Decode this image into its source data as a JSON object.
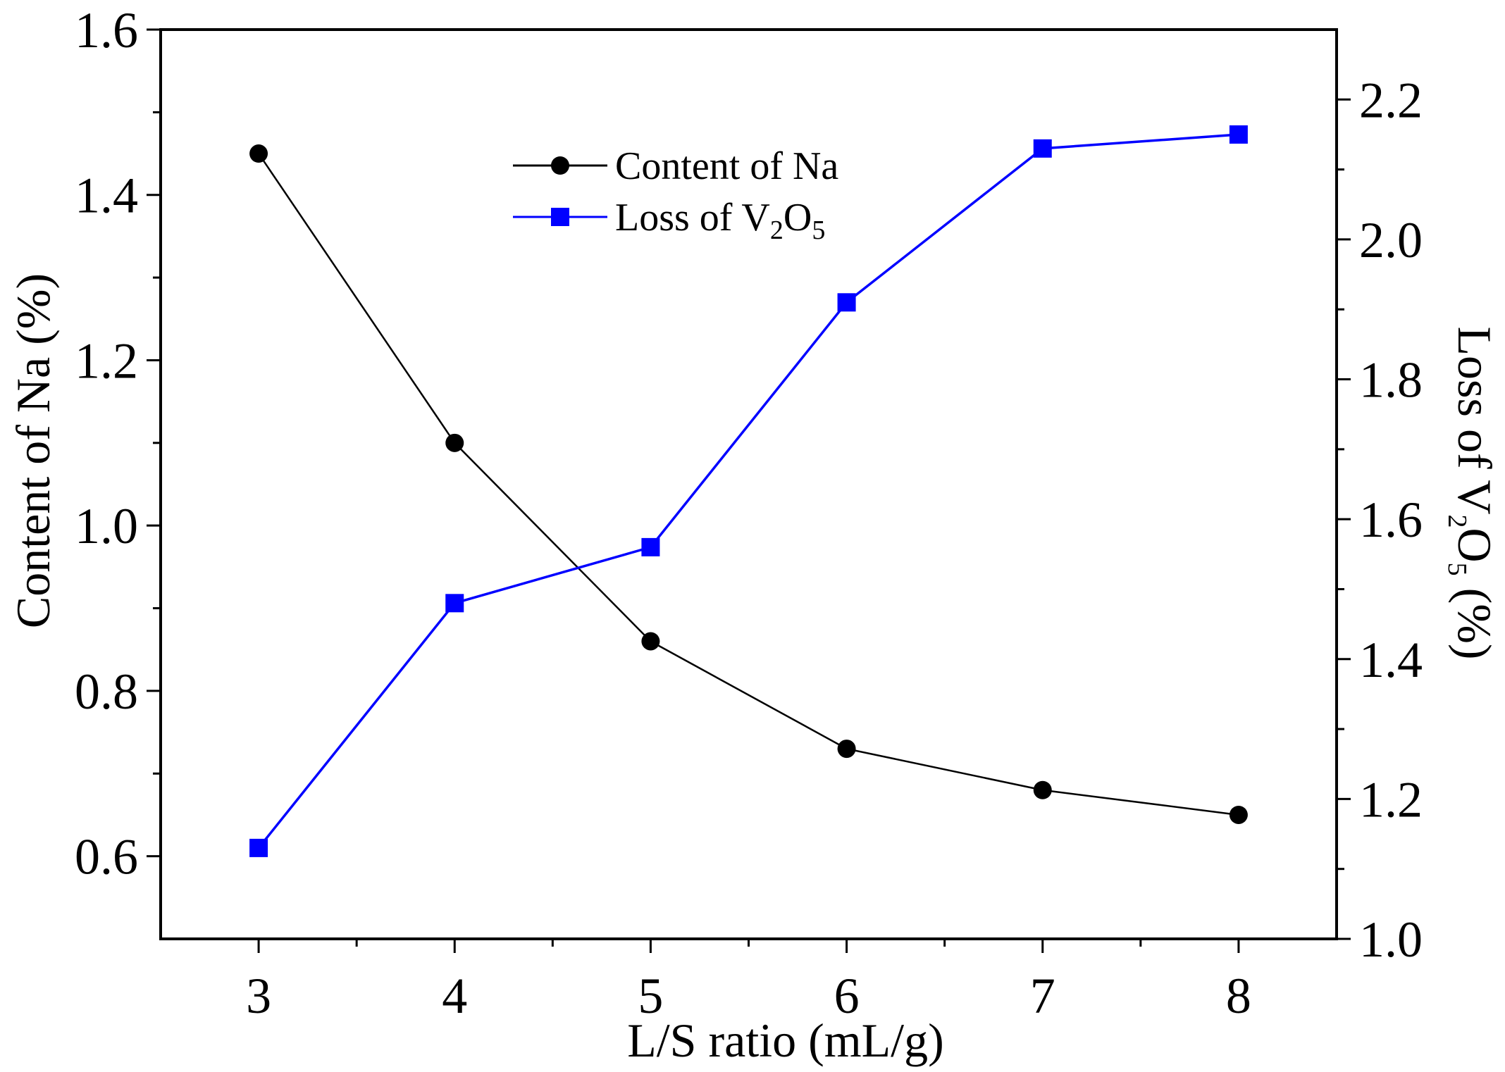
{
  "chart_data": {
    "type": "line",
    "x": [
      3,
      4,
      5,
      6,
      7,
      8
    ],
    "xlabel": "L/S ratio (mL/g)",
    "xlim": [
      2.5,
      8.5
    ],
    "xticks": [
      "3",
      "4",
      "5",
      "6",
      "7",
      "8"
    ],
    "ylabel_left": "Content of Na (%)",
    "ylim_left": [
      0.5,
      1.6
    ],
    "yticks_left": [
      "0.6",
      "0.8",
      "1.0",
      "1.2",
      "1.4",
      "1.6"
    ],
    "ylabel_right": {
      "prefix": "Loss of V",
      "sub1": "2",
      "mid": "O",
      "sub2": "5",
      "suffix": " (%)"
    },
    "ylim_right": [
      1.0,
      2.3
    ],
    "yticks_right": [
      "1.0",
      "1.2",
      "1.4",
      "1.6",
      "1.8",
      "2.0",
      "2.2"
    ],
    "grid": false,
    "legend_position": "upper-center",
    "series": [
      {
        "name": "Content of Na",
        "axis": "left",
        "marker": "circle",
        "color": "#000000",
        "values": [
          1.45,
          1.1,
          0.86,
          0.73,
          0.68,
          0.65
        ]
      },
      {
        "name": "Loss of V2O5",
        "label_parts": {
          "prefix": "Loss of V",
          "sub1": "2",
          "mid": "O",
          "sub2": "5"
        },
        "axis": "right",
        "marker": "square",
        "color": "#0000ff",
        "values": [
          1.13,
          1.48,
          1.56,
          1.91,
          2.13,
          2.15
        ]
      }
    ]
  }
}
